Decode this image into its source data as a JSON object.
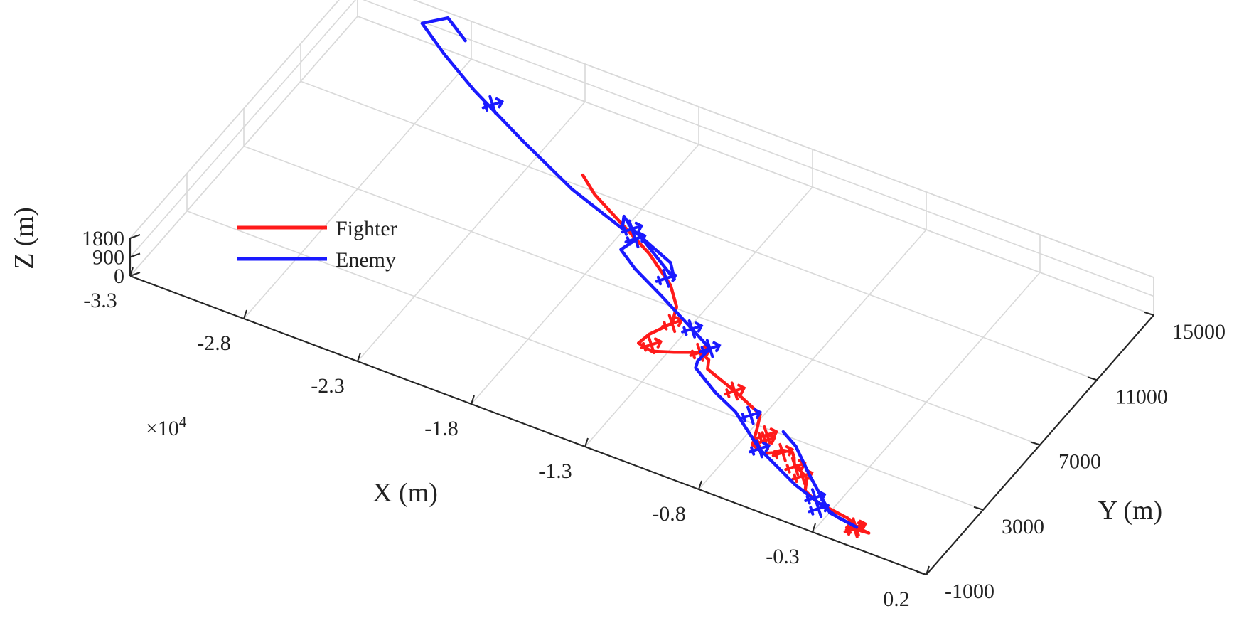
{
  "chart_data": {
    "type": "line",
    "projection": "3d",
    "title": "",
    "xlabel": "X (m)",
    "ylabel": "Y (m)",
    "zlabel": "Z (m)",
    "x_exponent_label": "×10",
    "x_exponent_power": "4",
    "x_ticks": [
      "-3.3",
      "-2.8",
      "-2.3",
      "-1.8",
      "-1.3",
      "-0.8",
      "-0.3",
      "0.2"
    ],
    "y_ticks": [
      "-1000",
      "3000",
      "7000",
      "11000",
      "15000"
    ],
    "z_ticks": [
      "0",
      "900",
      "1800"
    ],
    "xlim": [
      -33000,
      2000
    ],
    "ylim": [
      -1000,
      15000
    ],
    "zlim": [
      0,
      1800
    ],
    "grid": true,
    "legend_position": "top-left",
    "marker": "aircraft",
    "series": [
      {
        "name": "Fighter",
        "color": "#ff1a1a",
        "points": [
          [
            -20100,
            10200,
            1400
          ],
          [
            -19200,
            9600,
            1300
          ],
          [
            -17500,
            8800,
            1200
          ],
          [
            -15800,
            8000,
            1100
          ],
          [
            -14300,
            7100,
            900
          ],
          [
            -13600,
            6400,
            700
          ],
          [
            -13300,
            5600,
            650
          ],
          [
            -13800,
            4800,
            550
          ],
          [
            -13900,
            4200,
            550
          ],
          [
            -13200,
            4000,
            600
          ],
          [
            -12400,
            4300,
            650
          ],
          [
            -11500,
            4700,
            700
          ],
          [
            -11000,
            4500,
            700
          ],
          [
            -10800,
            4100,
            650
          ],
          [
            -9300,
            3600,
            600
          ],
          [
            -7800,
            3000,
            560
          ],
          [
            -7500,
            2300,
            540
          ],
          [
            -7200,
            1500,
            520
          ],
          [
            -6600,
            1300,
            500
          ],
          [
            -6300,
            1500,
            500
          ],
          [
            -6100,
            1800,
            480
          ],
          [
            -5700,
            1900,
            470
          ],
          [
            -5500,
            1700,
            460
          ],
          [
            -5300,
            1400,
            450
          ],
          [
            -4500,
            1000,
            420
          ],
          [
            -4200,
            400,
            400
          ],
          [
            -3500,
            100,
            380
          ],
          [
            -2000,
            -100,
            360
          ],
          [
            -1500,
            -350,
            350
          ],
          [
            -900,
            -400,
            340
          ],
          [
            -1700,
            -450,
            330
          ]
        ],
        "markers": [
          [
            -13300,
            5600,
            650
          ],
          [
            -13400,
            4300,
            600
          ],
          [
            -11500,
            4700,
            700
          ],
          [
            -9300,
            3600,
            600
          ],
          [
            -7000,
            2200,
            530
          ],
          [
            -6900,
            1900,
            520
          ],
          [
            -6000,
            1700,
            480
          ],
          [
            -5200,
            1300,
            450
          ],
          [
            -4700,
            1000,
            430
          ],
          [
            -1500,
            -350,
            350
          ],
          [
            -1500,
            -450,
            340
          ]
        ]
      },
      {
        "name": "Enemy",
        "color": "#1a1aff",
        "points": [
          [
            -27700,
            14100,
            1700
          ],
          [
            -28900,
            14800,
            1750
          ],
          [
            -29600,
            14100,
            1750
          ],
          [
            -28000,
            13100,
            1700
          ],
          [
            -26000,
            12000,
            1650
          ],
          [
            -23000,
            10600,
            1550
          ],
          [
            -20000,
            9300,
            1450
          ],
          [
            -17300,
            8500,
            1300
          ],
          [
            -17600,
            9100,
            1300
          ],
          [
            -17000,
            8700,
            1250
          ],
          [
            -14800,
            7900,
            1150
          ],
          [
            -14200,
            7200,
            1150
          ],
          [
            -16500,
            8500,
            1250
          ],
          [
            -16800,
            7600,
            1200
          ],
          [
            -15800,
            7000,
            1150
          ],
          [
            -14200,
            6300,
            1050
          ],
          [
            -12300,
            5400,
            950
          ],
          [
            -11200,
            4900,
            850
          ],
          [
            -11300,
            4200,
            750
          ],
          [
            -11200,
            3900,
            700
          ],
          [
            -9900,
            3200,
            600
          ],
          [
            -8700,
            2700,
            550
          ],
          [
            -7800,
            2100,
            500
          ],
          [
            -6900,
            1500,
            450
          ],
          [
            -4700,
            500,
            400
          ],
          [
            -2400,
            -200,
            330
          ],
          [
            -1500,
            -300,
            300
          ],
          [
            -2800,
            -100,
            300
          ],
          [
            -4600,
            1300,
            350
          ],
          [
            -5800,
            2300,
            400
          ],
          [
            -6600,
            2700,
            450
          ]
        ],
        "markers": [
          [
            -25000,
            11700,
            1600
          ],
          [
            -17000,
            8700,
            1250
          ],
          [
            -16600,
            8300,
            1250
          ],
          [
            -14500,
            7100,
            1150
          ],
          [
            -12300,
            5400,
            950
          ],
          [
            -11200,
            4900,
            850
          ],
          [
            -8100,
            2800,
            550
          ],
          [
            -6900,
            1500,
            450
          ],
          [
            -3700,
            300,
            350
          ],
          [
            -3300,
            -100,
            300
          ]
        ]
      }
    ]
  }
}
